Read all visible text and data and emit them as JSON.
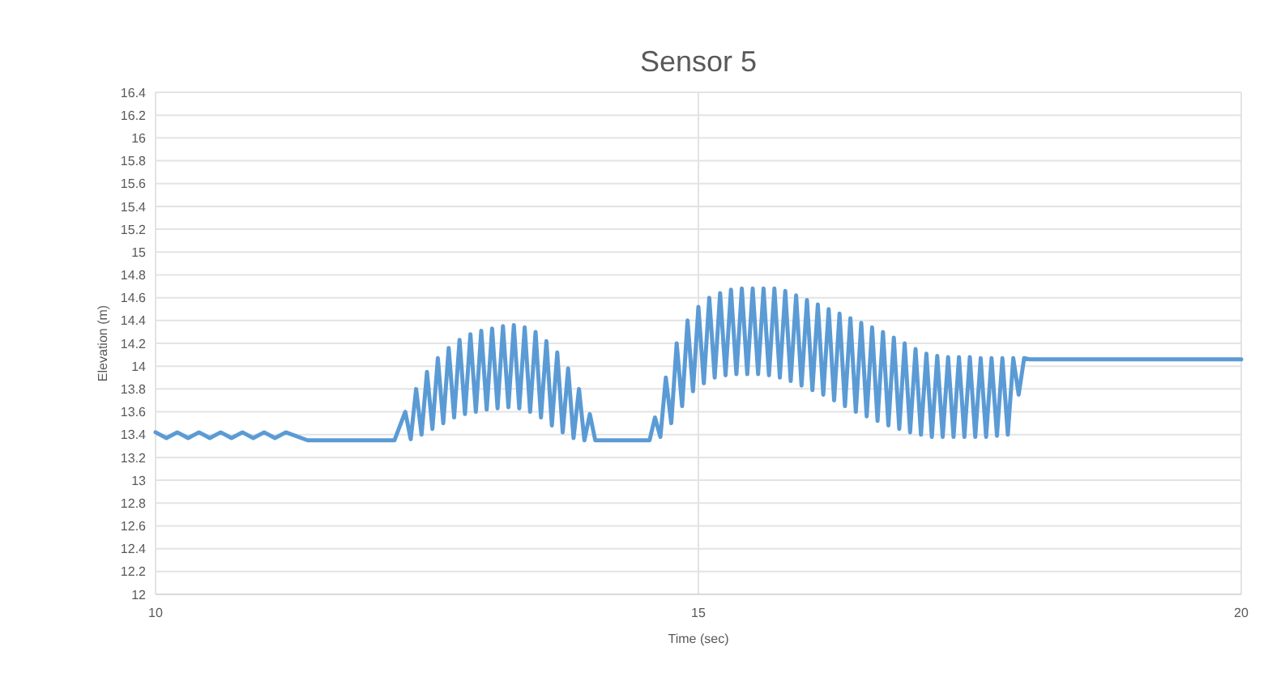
{
  "chart_data": {
    "type": "line",
    "title": "Sensor 5",
    "xlabel": "Time (sec)",
    "ylabel": "Elevation (m)",
    "xlim": [
      10,
      20
    ],
    "xticks": [
      10,
      15,
      20
    ],
    "ylim": [
      12,
      16.4
    ],
    "yticks": [
      12,
      12.2,
      12.4,
      12.6,
      12.8,
      13,
      13.2,
      13.4,
      13.6,
      13.8,
      14,
      14.2,
      14.4,
      14.6,
      14.8,
      15,
      15.2,
      15.4,
      15.6,
      15.8,
      16,
      16.2,
      16.4
    ],
    "grid": true,
    "marker": "none",
    "line_style": "solid",
    "series": [
      {
        "color": "#5b9bd5",
        "x": [
          10,
          10.1,
          10.2,
          10.3,
          10.4,
          10.5,
          10.6,
          10.7,
          10.8,
          10.9,
          11,
          11.1,
          11.2,
          11.4,
          12.2,
          12.3,
          12.35,
          12.4,
          12.45,
          12.5,
          12.55,
          12.6,
          12.65,
          12.7,
          12.75,
          12.8,
          12.85,
          12.9,
          12.95,
          13,
          13.05,
          13.1,
          13.15,
          13.2,
          13.25,
          13.3,
          13.35,
          13.4,
          13.45,
          13.5,
          13.55,
          13.6,
          13.65,
          13.7,
          13.75,
          13.8,
          13.85,
          13.9,
          13.95,
          14,
          14.05,
          14.1,
          14.55,
          14.6,
          14.65,
          14.7,
          14.75,
          14.8,
          14.85,
          14.9,
          14.95,
          15,
          15.05,
          15.1,
          15.15,
          15.2,
          15.25,
          15.3,
          15.35,
          15.4,
          15.45,
          15.5,
          15.55,
          15.6,
          15.65,
          15.7,
          15.75,
          15.8,
          15.85,
          15.9,
          15.95,
          16,
          16.05,
          16.1,
          16.15,
          16.2,
          16.25,
          16.3,
          16.35,
          16.4,
          16.45,
          16.5,
          16.55,
          16.6,
          16.65,
          16.7,
          16.75,
          16.8,
          16.85,
          16.9,
          16.95,
          17,
          17.05,
          17.1,
          17.15,
          17.2,
          17.25,
          17.3,
          17.35,
          17.4,
          17.45,
          17.5,
          17.55,
          17.6,
          17.65,
          17.7,
          17.75,
          17.8,
          17.85,
          17.9,
          17.95,
          18,
          18.05,
          20
        ],
        "values": [
          13.42,
          13.37,
          13.42,
          13.37,
          13.42,
          13.37,
          13.42,
          13.37,
          13.42,
          13.37,
          13.42,
          13.37,
          13.42,
          13.35,
          13.35,
          13.6,
          13.36,
          13.8,
          13.4,
          13.95,
          13.45,
          14.07,
          13.5,
          14.16,
          13.55,
          14.23,
          13.58,
          14.28,
          13.6,
          14.31,
          13.62,
          14.33,
          13.63,
          14.35,
          13.64,
          14.36,
          13.63,
          14.34,
          13.6,
          14.3,
          13.55,
          14.22,
          13.48,
          14.12,
          13.42,
          13.98,
          13.37,
          13.8,
          13.35,
          13.58,
          13.35,
          13.35,
          13.35,
          13.55,
          13.38,
          13.9,
          13.5,
          14.2,
          13.65,
          14.4,
          13.78,
          14.52,
          13.85,
          14.6,
          13.9,
          14.64,
          13.92,
          14.67,
          13.93,
          14.68,
          13.93,
          14.68,
          13.93,
          14.68,
          13.92,
          14.68,
          13.9,
          14.66,
          13.87,
          14.62,
          13.83,
          14.58,
          13.79,
          14.54,
          13.75,
          14.5,
          13.7,
          14.46,
          13.65,
          14.42,
          13.6,
          14.38,
          13.56,
          14.34,
          13.52,
          14.3,
          13.48,
          14.25,
          13.45,
          14.2,
          13.42,
          14.15,
          13.4,
          14.11,
          13.38,
          14.09,
          13.38,
          14.08,
          13.38,
          14.08,
          13.38,
          14.08,
          13.38,
          14.07,
          13.38,
          14.07,
          13.39,
          14.07,
          13.4,
          14.07,
          13.75,
          14.07,
          14.06,
          14.06
        ]
      }
    ]
  }
}
